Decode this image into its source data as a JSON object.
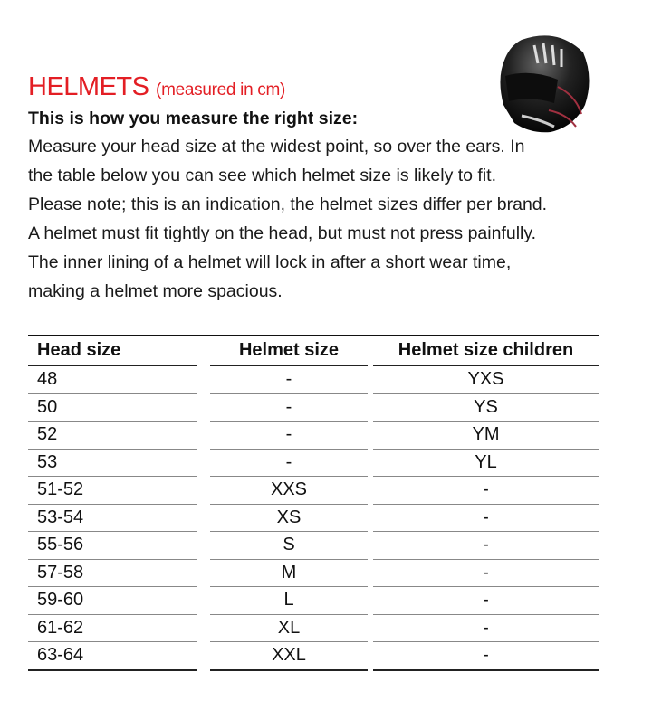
{
  "title": "HELMETS",
  "title_sub": "(measured in cm)",
  "heading": "This is how you measure the right size:",
  "paragraph_lines": [
    "Measure your head size at the widest point, so over the ears. In",
    "the table below you can see which helmet size is likely to fit.",
    "Please note; this is an indication, the helmet sizes differ per brand.",
    "A helmet must fit tightly on the head, but must not press painfully.",
    "The inner lining of a helmet will lock in after a short wear time,",
    "making a helmet more spacious."
  ],
  "accent_color": "#e31e24",
  "image": "helmet-photo",
  "table": {
    "headers": [
      "Head size",
      "Helmet size",
      "Helmet size children"
    ],
    "rows": [
      [
        "48",
        "-",
        "YXS"
      ],
      [
        "50",
        "-",
        "YS"
      ],
      [
        "52",
        "-",
        "YM"
      ],
      [
        "53",
        "-",
        "YL"
      ],
      [
        "51-52",
        "XXS",
        "-"
      ],
      [
        "53-54",
        "XS",
        "-"
      ],
      [
        "55-56",
        "S",
        "-"
      ],
      [
        "57-58",
        "M",
        "-"
      ],
      [
        "59-60",
        "L",
        "-"
      ],
      [
        "61-62",
        "XL",
        "-"
      ],
      [
        "63-64",
        "XXL",
        "-"
      ]
    ]
  }
}
